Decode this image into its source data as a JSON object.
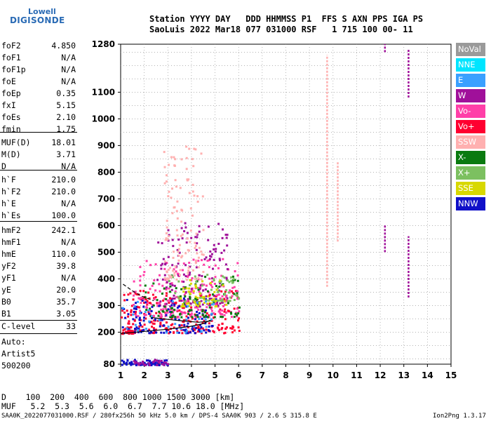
{
  "logo": {
    "line1": "Lowell",
    "line2": "DIGISONDE"
  },
  "header": {
    "line1": "Station YYYY DAY   DDD HHMMSS P1  FFS S AXN PPS IGA PS",
    "line2": "SaoLuis 2022 Mar18 077 031000 RSF   1 715 100 00- 11"
  },
  "params": [
    {
      "name": "foF2",
      "value": "4.850"
    },
    {
      "name": "foF1",
      "value": "N/A"
    },
    {
      "name": "foF1p",
      "value": "N/A"
    },
    {
      "name": "foE",
      "value": "N/A"
    },
    {
      "name": "foEp",
      "value": "0.35"
    },
    {
      "name": "fxI",
      "value": "5.15"
    },
    {
      "name": "foEs",
      "value": "2.10"
    },
    {
      "name": "fmin",
      "value": "1.75"
    },
    {
      "name": "MUF(D)",
      "value": "18.01"
    },
    {
      "name": "M(D)",
      "value": "3.71"
    },
    {
      "name": "D",
      "value": "N/A"
    },
    {
      "name": "h`F",
      "value": "210.0"
    },
    {
      "name": "h`F2",
      "value": "210.0"
    },
    {
      "name": "h`E",
      "value": "N/A"
    },
    {
      "name": "h`Es",
      "value": "100.0"
    },
    {
      "name": "hmF2",
      "value": "242.1"
    },
    {
      "name": "hmF1",
      "value": "N/A"
    },
    {
      "name": "hmE",
      "value": "110.0"
    },
    {
      "name": "yF2",
      "value": "39.8"
    },
    {
      "name": "yF1",
      "value": "N/A"
    },
    {
      "name": "yE",
      "value": "20.0"
    },
    {
      "name": "B0",
      "value": "35.7"
    },
    {
      "name": "B1",
      "value": "3.05"
    }
  ],
  "clevel": {
    "name": "C-level",
    "value": "33"
  },
  "auto": {
    "line1": "Auto:",
    "line2": "Artist5",
    "line3": "500200"
  },
  "legend": [
    {
      "label": "NoVal",
      "color": "#9a9a9a",
      "text": "#ffffff"
    },
    {
      "label": "NNE",
      "color": "#00e5ff",
      "text": "#ffffff"
    },
    {
      "label": "E",
      "color": "#3aa0ff",
      "text": "#ffffff"
    },
    {
      "label": "W",
      "color": "#a0109a",
      "text": "#ffffff"
    },
    {
      "label": "Vo-",
      "color": "#ff3fa8",
      "text": "#ffffff"
    },
    {
      "label": "Vo+",
      "color": "#ff0030",
      "text": "#ffffff"
    },
    {
      "label": "SSW",
      "color": "#ffb0b0",
      "text": "#ffffff"
    },
    {
      "label": "X-",
      "color": "#0a7a10",
      "text": "#ffffff"
    },
    {
      "label": "X+",
      "color": "#7cc060",
      "text": "#ffffff"
    },
    {
      "label": "SSE",
      "color": "#d8d800",
      "text": "#ffffff"
    },
    {
      "label": "NNW",
      "color": "#1010c8",
      "text": "#ffffff"
    }
  ],
  "bottom": {
    "line1": "D    100  200  400  600  800 1000 1500 3000 [km]",
    "line2": "MUF   5.2  5.3  5.6  6.0  6.7  7.7 10.6 18.0 [MHz]"
  },
  "footer": {
    "left": "SAA0K_2022077031000.RSF / 280fx256h 50 kHz 5.0 km / DPS-4 SAA0K 903 / 2.6 S 315.8 E",
    "right": "Ion2Png 1.3.17"
  },
  "chart_data": {
    "type": "scatter",
    "title": "",
    "xlabel": "",
    "ylabel": "",
    "xlim": [
      1,
      15
    ],
    "ylim": [
      80,
      1280
    ],
    "xticks": [
      "1",
      "2",
      "3",
      "4",
      "5",
      "6",
      "7",
      "8",
      "9",
      "10",
      "11",
      "12",
      "13",
      "14",
      "15"
    ],
    "yticks": [
      {
        "label": "80",
        "v": 80
      },
      {
        "label": "200",
        "v": 200
      },
      {
        "label": "300",
        "v": 300
      },
      {
        "label": "400",
        "v": 400
      },
      {
        "label": "500",
        "v": 500
      },
      {
        "label": "600",
        "v": 600
      },
      {
        "label": "700",
        "v": 700
      },
      {
        "label": "800",
        "v": 800
      },
      {
        "label": "900",
        "v": 900
      },
      {
        "label": "1000",
        "v": 1000
      },
      {
        "label": "1100",
        "v": 1100
      },
      {
        "label": "1280",
        "v": 1280
      }
    ],
    "grid": true,
    "trace_profile": [
      {
        "f": 1.0,
        "h": 195
      },
      {
        "f": 2.0,
        "h": 203
      },
      {
        "f": 3.0,
        "h": 211
      },
      {
        "f": 4.0,
        "h": 222
      },
      {
        "f": 4.5,
        "h": 232
      },
      {
        "f": 4.8,
        "h": 245
      }
    ],
    "profile_upper": [
      {
        "f": 2.3,
        "h": 255
      },
      {
        "f": 3.3,
        "h": 245
      },
      {
        "f": 4.3,
        "h": 237
      },
      {
        "f": 4.85,
        "h": 242
      }
    ],
    "dashed_branch": [
      {
        "f": 1.1,
        "h": 380
      },
      {
        "f": 1.5,
        "h": 355
      },
      {
        "f": 1.9,
        "h": 335
      },
      {
        "f": 2.4,
        "h": 318
      }
    ],
    "clusters": [
      {
        "color": "#ff0030",
        "x": [
          1.0,
          6.0
        ],
        "y": [
          200,
          360
        ],
        "n": 260
      },
      {
        "color": "#ff3fa8",
        "x": [
          1.5,
          6.0
        ],
        "y": [
          260,
          480
        ],
        "n": 220
      },
      {
        "color": "#a0109a",
        "x": [
          2.5,
          5.5
        ],
        "y": [
          300,
          620
        ],
        "n": 140
      },
      {
        "color": "#1010c8",
        "x": [
          1.0,
          5.0
        ],
        "y": [
          200,
          330
        ],
        "n": 120
      },
      {
        "color": "#0a7a10",
        "x": [
          2.0,
          6.0
        ],
        "y": [
          260,
          420
        ],
        "n": 90
      },
      {
        "color": "#7cc060",
        "x": [
          3.0,
          6.0
        ],
        "y": [
          320,
          420
        ],
        "n": 60
      },
      {
        "color": "#d8d800",
        "x": [
          3.5,
          5.5
        ],
        "y": [
          300,
          400
        ],
        "n": 50
      },
      {
        "color": "#ffb0b0",
        "x": [
          2.8,
          4.5
        ],
        "y": [
          400,
          900
        ],
        "n": 120
      },
      {
        "color": "#3aa0ff",
        "x": [
          1.0,
          5.0
        ],
        "y": [
          200,
          320
        ],
        "n": 40
      },
      {
        "color": "#1010c8",
        "x": [
          1.0,
          3.0
        ],
        "y": [
          80,
          100
        ],
        "n": 70
      },
      {
        "color": "#a0109a",
        "x": [
          1.5,
          3.0
        ],
        "y": [
          80,
          100
        ],
        "n": 30
      },
      {
        "color": "#ff0030",
        "x": [
          1.0,
          1.5
        ],
        "y": [
          198,
          210
        ],
        "n": 25
      }
    ],
    "vertical_marks": [
      {
        "color": "#ffb0b0",
        "f": 9.75,
        "h": [
          370,
          1240
        ]
      },
      {
        "color": "#ffb0b0",
        "f": 10.2,
        "h": [
          540,
          840
        ]
      },
      {
        "color": "#a0109a",
        "f": 12.2,
        "h": [
          500,
          600
        ]
      },
      {
        "color": "#a0109a",
        "f": 12.2,
        "h": [
          1250,
          1280
        ]
      },
      {
        "color": "#a0109a",
        "f": 13.2,
        "h": [
          330,
          560
        ]
      },
      {
        "color": "#a0109a",
        "f": 13.2,
        "h": [
          1080,
          1260
        ]
      }
    ]
  }
}
